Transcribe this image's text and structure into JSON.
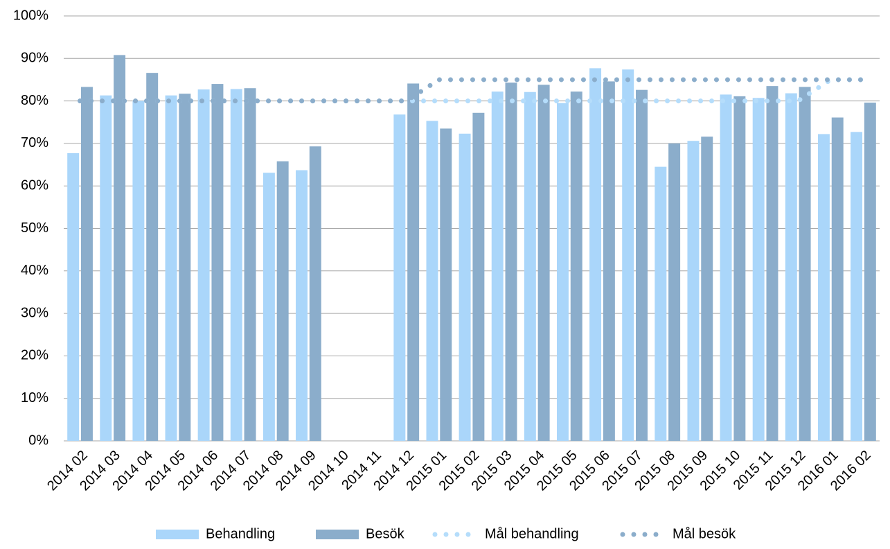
{
  "chart_data": {
    "type": "bar",
    "categories": [
      "2014 02",
      "2014 03",
      "2014 04",
      "2014 05",
      "2014 06",
      "2014 07",
      "2014 08",
      "2014 09",
      "2014 10",
      "2014 11",
      "2014 12",
      "2015 01",
      "2015 02",
      "2015 03",
      "2015 04",
      "2015 05",
      "2015 06",
      "2015 07",
      "2015 08",
      "2015 09",
      "2015 10",
      "2015 11",
      "2015 12",
      "2016 01",
      "2016 02"
    ],
    "series": [
      {
        "name": "Behandling",
        "type": "bar",
        "color": "#aad6fa",
        "values": [
          67.7,
          81.3,
          80,
          81.3,
          82.7,
          82.8,
          63.1,
          63.7,
          null,
          null,
          76.8,
          75.3,
          72.3,
          82.2,
          82.1,
          79.5,
          87.7,
          87.4,
          64.5,
          70.6,
          81.5,
          80.7,
          81.8,
          72.2,
          72.7
        ]
      },
      {
        "name": "Besök",
        "type": "bar",
        "color": "#8badcb",
        "values": [
          83.3,
          90.8,
          86.6,
          81.7,
          84.0,
          83.0,
          65.8,
          69.3,
          null,
          null,
          84.1,
          73.5,
          77.2,
          84.3,
          83.8,
          82.2,
          84.6,
          82.6,
          70.0,
          71.6,
          81.1,
          83.5,
          83.3,
          76.1,
          79.6
        ]
      },
      {
        "name": "Mål behandling",
        "type": "line",
        "color": "#b5ddfb",
        "values": [
          80,
          80,
          80,
          80,
          80,
          80,
          80,
          80,
          80,
          80,
          80,
          80,
          80,
          80,
          80,
          80,
          80,
          80,
          80,
          80,
          80,
          80,
          80,
          85,
          85
        ]
      },
      {
        "name": "Mål besök",
        "type": "line",
        "color": "#8badcb",
        "values": [
          80,
          80,
          80,
          80,
          80,
          80,
          80,
          80,
          80,
          80,
          80,
          85,
          85,
          85,
          85,
          85,
          85,
          85,
          85,
          85,
          85,
          85,
          85,
          85,
          85
        ]
      }
    ],
    "ylim": [
      0,
      100
    ],
    "yticks": [
      {
        "value": 0,
        "label": "0%"
      },
      {
        "value": 10,
        "label": "10%"
      },
      {
        "value": 20,
        "label": "20%"
      },
      {
        "value": 30,
        "label": "30%"
      },
      {
        "value": 40,
        "label": "40%"
      },
      {
        "value": 50,
        "label": "50%"
      },
      {
        "value": 60,
        "label": "60%"
      },
      {
        "value": 70,
        "label": "70%"
      },
      {
        "value": 80,
        "label": "80%"
      },
      {
        "value": 90,
        "label": "90%"
      },
      {
        "value": 100,
        "label": "100%"
      }
    ],
    "grid": true,
    "legend": "bottom"
  }
}
